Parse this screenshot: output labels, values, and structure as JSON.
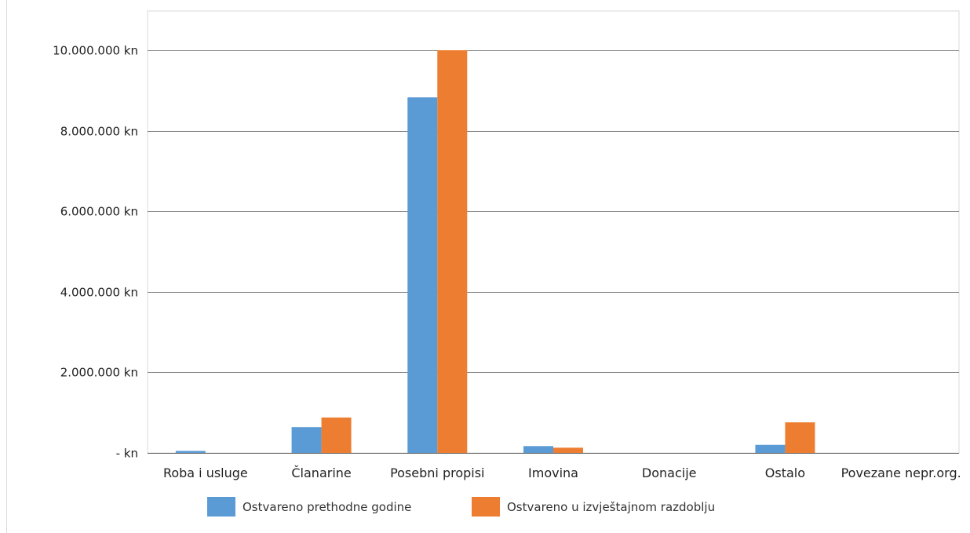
{
  "chart_data": {
    "type": "bar",
    "title": "",
    "xlabel": "",
    "ylabel": "",
    "categories": [
      "Roba i usluge",
      "Članarine",
      "Posebni propisi",
      "Imovina",
      "Donacije",
      "Ostalo",
      "Povezane nepr.org."
    ],
    "series": [
      {
        "name": "Ostvareno prethodne godine",
        "color": "#5b9bd5",
        "values": [
          50000,
          640000,
          8830000,
          170000,
          0,
          200000,
          0
        ]
      },
      {
        "name": "Ostvareno u izvještajnom razdoblju",
        "color": "#ed7d31",
        "values": [
          0,
          880000,
          10000000,
          130000,
          0,
          760000,
          0
        ]
      }
    ],
    "ylim": [
      0,
      10000000
    ],
    "y_ticks": [
      0,
      2000000,
      4000000,
      6000000,
      8000000,
      10000000
    ],
    "y_tick_labels": [
      "- kn",
      "2.000.000 kn",
      "4.000.000 kn",
      "6.000.000 kn",
      "8.000.000 kn",
      "10.000.000 kn"
    ],
    "grid": true,
    "legend_position": "bottom",
    "gridline_color": "#888888",
    "frame_color": "#d9d9d9"
  }
}
